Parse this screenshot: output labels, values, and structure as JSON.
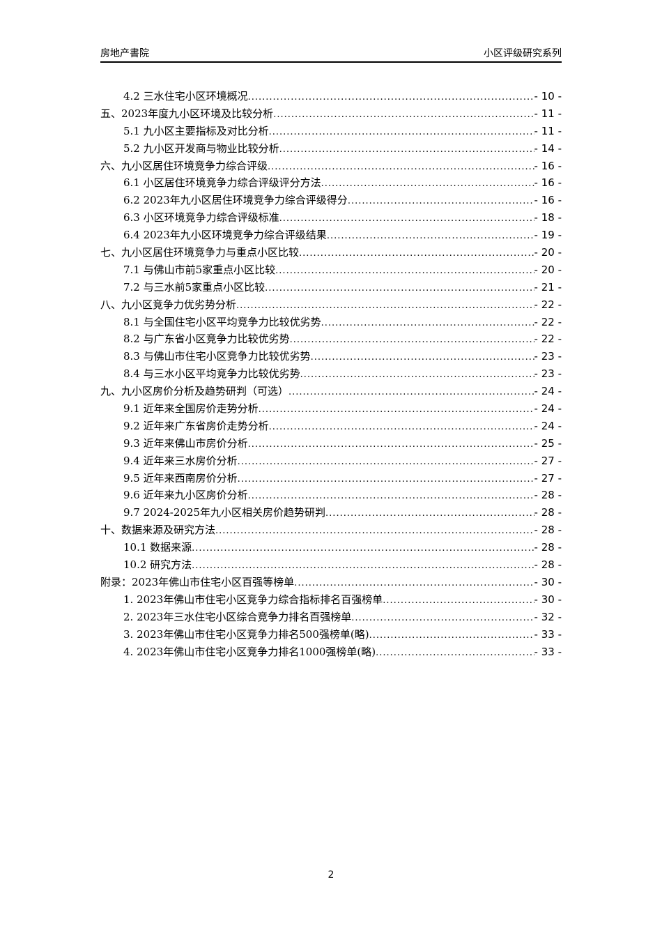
{
  "header": {
    "left": "房地产書院",
    "right": "小区评级研究系列"
  },
  "toc": [
    {
      "level": 2,
      "title": "4.2 三水住宅小区环境概况",
      "page": "- 10 -"
    },
    {
      "level": 1,
      "title": "五、2023年度九小区环境及比较分析",
      "page": "- 11 -"
    },
    {
      "level": 2,
      "title": "5.1 九小区主要指标及对比分析",
      "page": "- 11 -"
    },
    {
      "level": 2,
      "title": "5.2 九小区开发商与物业比较分析",
      "page": "- 14 -"
    },
    {
      "level": 1,
      "title": "六、九小区居住环境竞争力综合评级",
      "page": "- 16 -"
    },
    {
      "level": 2,
      "title": "6.1 小区居住环境竞争力综合评级评分方法",
      "page": "- 16 -"
    },
    {
      "level": 2,
      "title": "6.2 2023年九小区居住环境竞争力综合评级得分",
      "page": "- 16 -"
    },
    {
      "level": 2,
      "title": "6.3 小区环境竞争力综合评级标准",
      "page": "- 18 -"
    },
    {
      "level": 2,
      "title": "6.4 2023年九小区环境竞争力综合评级结果",
      "page": "- 19 -"
    },
    {
      "level": 1,
      "title": "七、九小区居住环境竞争力与重点小区比较",
      "page": "- 20 -"
    },
    {
      "level": 2,
      "title": "7.1 与佛山市前5家重点小区比较",
      "page": "- 20 -"
    },
    {
      "level": 2,
      "title": "7.2 与三水前5家重点小区比较",
      "page": "- 21 -"
    },
    {
      "level": 1,
      "title": "八、九小区竞争力优劣势分析",
      "page": "- 22 -"
    },
    {
      "level": 2,
      "title": "8.1 与全国住宅小区平均竞争力比较优劣势",
      "page": "- 22 -"
    },
    {
      "level": 2,
      "title": "8.2 与广东省小区竞争力比较优劣势",
      "page": "- 22 -"
    },
    {
      "level": 2,
      "title": "8.3 与佛山市住宅小区竞争力比较优劣势",
      "page": "- 23 -"
    },
    {
      "level": 2,
      "title": "8.4 与三水小区平均竞争力比较优劣势",
      "page": "- 23 -"
    },
    {
      "level": 1,
      "title": "九、九小区房价分析及趋势研判（可选）",
      "page": "- 24 -"
    },
    {
      "level": 2,
      "title": "9.1 近年来全国房价走势分析",
      "page": "- 24 -"
    },
    {
      "level": 2,
      "title": "9.2 近年来广东省房价走势分析",
      "page": "- 24 -"
    },
    {
      "level": 2,
      "title": "9.3 近年来佛山市房价分析",
      "page": "- 25 -"
    },
    {
      "level": 2,
      "title": "9.4 近年来三水房价分析",
      "page": "- 27 -"
    },
    {
      "level": 2,
      "title": "9.5 近年来西南房价分析",
      "page": "- 27 -"
    },
    {
      "level": 2,
      "title": "9.6 近年来九小区房价分析",
      "page": "- 28 -"
    },
    {
      "level": 2,
      "title": "9.7 2024-2025年九小区相关房价趋势研判",
      "page": "- 28 -"
    },
    {
      "level": 1,
      "title": "十、数据来源及研究方法",
      "page": "- 28 -"
    },
    {
      "level": 2,
      "title": "10.1 数据来源",
      "page": "- 28 -"
    },
    {
      "level": 2,
      "title": "10.2 研究方法",
      "page": "- 28 -"
    },
    {
      "level": 1,
      "title": "附录：2023年佛山市住宅小区百强等榜单",
      "page": "- 30 -"
    },
    {
      "level": 2,
      "title": "1. 2023年佛山市住宅小区竞争力综合指标排名百强榜单",
      "page": "- 30 -"
    },
    {
      "level": 2,
      "title": "2. 2023年三水住宅小区综合竞争力排名百强榜单",
      "page": "- 32 -"
    },
    {
      "level": 2,
      "title": "3. 2023年佛山市住宅小区竞争力排名500强榜单(略)",
      "page": "- 33 -"
    },
    {
      "level": 2,
      "title": "4. 2023年佛山市住宅小区竞争力排名1000强榜单(略)",
      "page": "- 33 -"
    }
  ],
  "footer": {
    "page_number": "2"
  }
}
